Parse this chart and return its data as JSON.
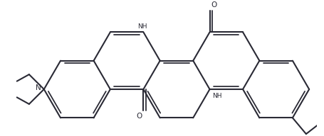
{
  "bg_color": "#ffffff",
  "bond_color": "#2a2a35",
  "bond_lw": 1.5,
  "text_color": "#000000",
  "figsize": [
    4.56,
    1.92
  ],
  "dpi": 100,
  "xlim": [
    0,
    456
  ],
  "ylim": [
    0,
    192
  ]
}
